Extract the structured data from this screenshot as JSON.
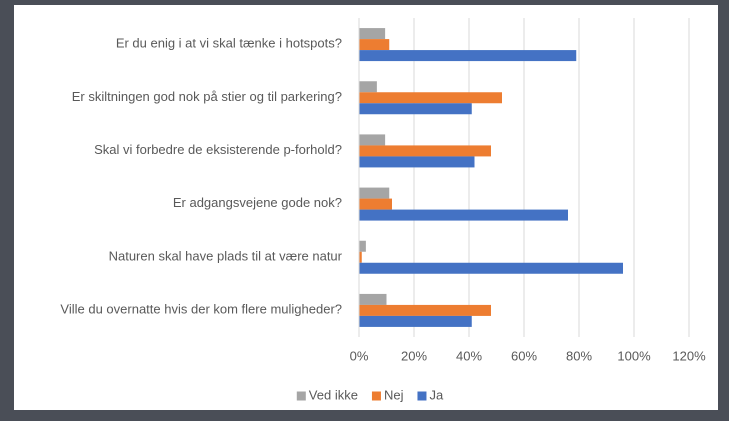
{
  "chart_data": {
    "type": "bar",
    "orientation": "horizontal",
    "categories": [
      "Er du enig i at vi skal tænke i hotspots?",
      "Er skiltningen god nok på stier og til parkering?",
      "Skal vi forbedre de eksisterende p-forhold?",
      "Er adgangsvejene gode nok?",
      "Naturen skal have plads til at være natur",
      "Ville du overnatte hvis der kom flere muligheder?"
    ],
    "series": [
      {
        "name": "Ved ikke",
        "color": "#a5a5a5",
        "values": [
          9.5,
          6.5,
          9.5,
          11,
          2.5,
          10
        ]
      },
      {
        "name": "Nej",
        "color": "#ed7d31",
        "values": [
          11,
          52,
          48,
          12,
          1,
          48
        ]
      },
      {
        "name": "Ja",
        "color": "#4472c4",
        "values": [
          79,
          41,
          42,
          76,
          96,
          41
        ]
      }
    ],
    "xlim": [
      0,
      120
    ],
    "xticks": [
      {
        "value": 0,
        "label": "0%"
      },
      {
        "value": 20,
        "label": "20%"
      },
      {
        "value": 40,
        "label": "40%"
      },
      {
        "value": 60,
        "label": "60%"
      },
      {
        "value": 80,
        "label": "80%"
      },
      {
        "value": 100,
        "label": "100%"
      },
      {
        "value": 120,
        "label": "120%"
      }
    ],
    "grid": true,
    "legend": "bottom"
  }
}
